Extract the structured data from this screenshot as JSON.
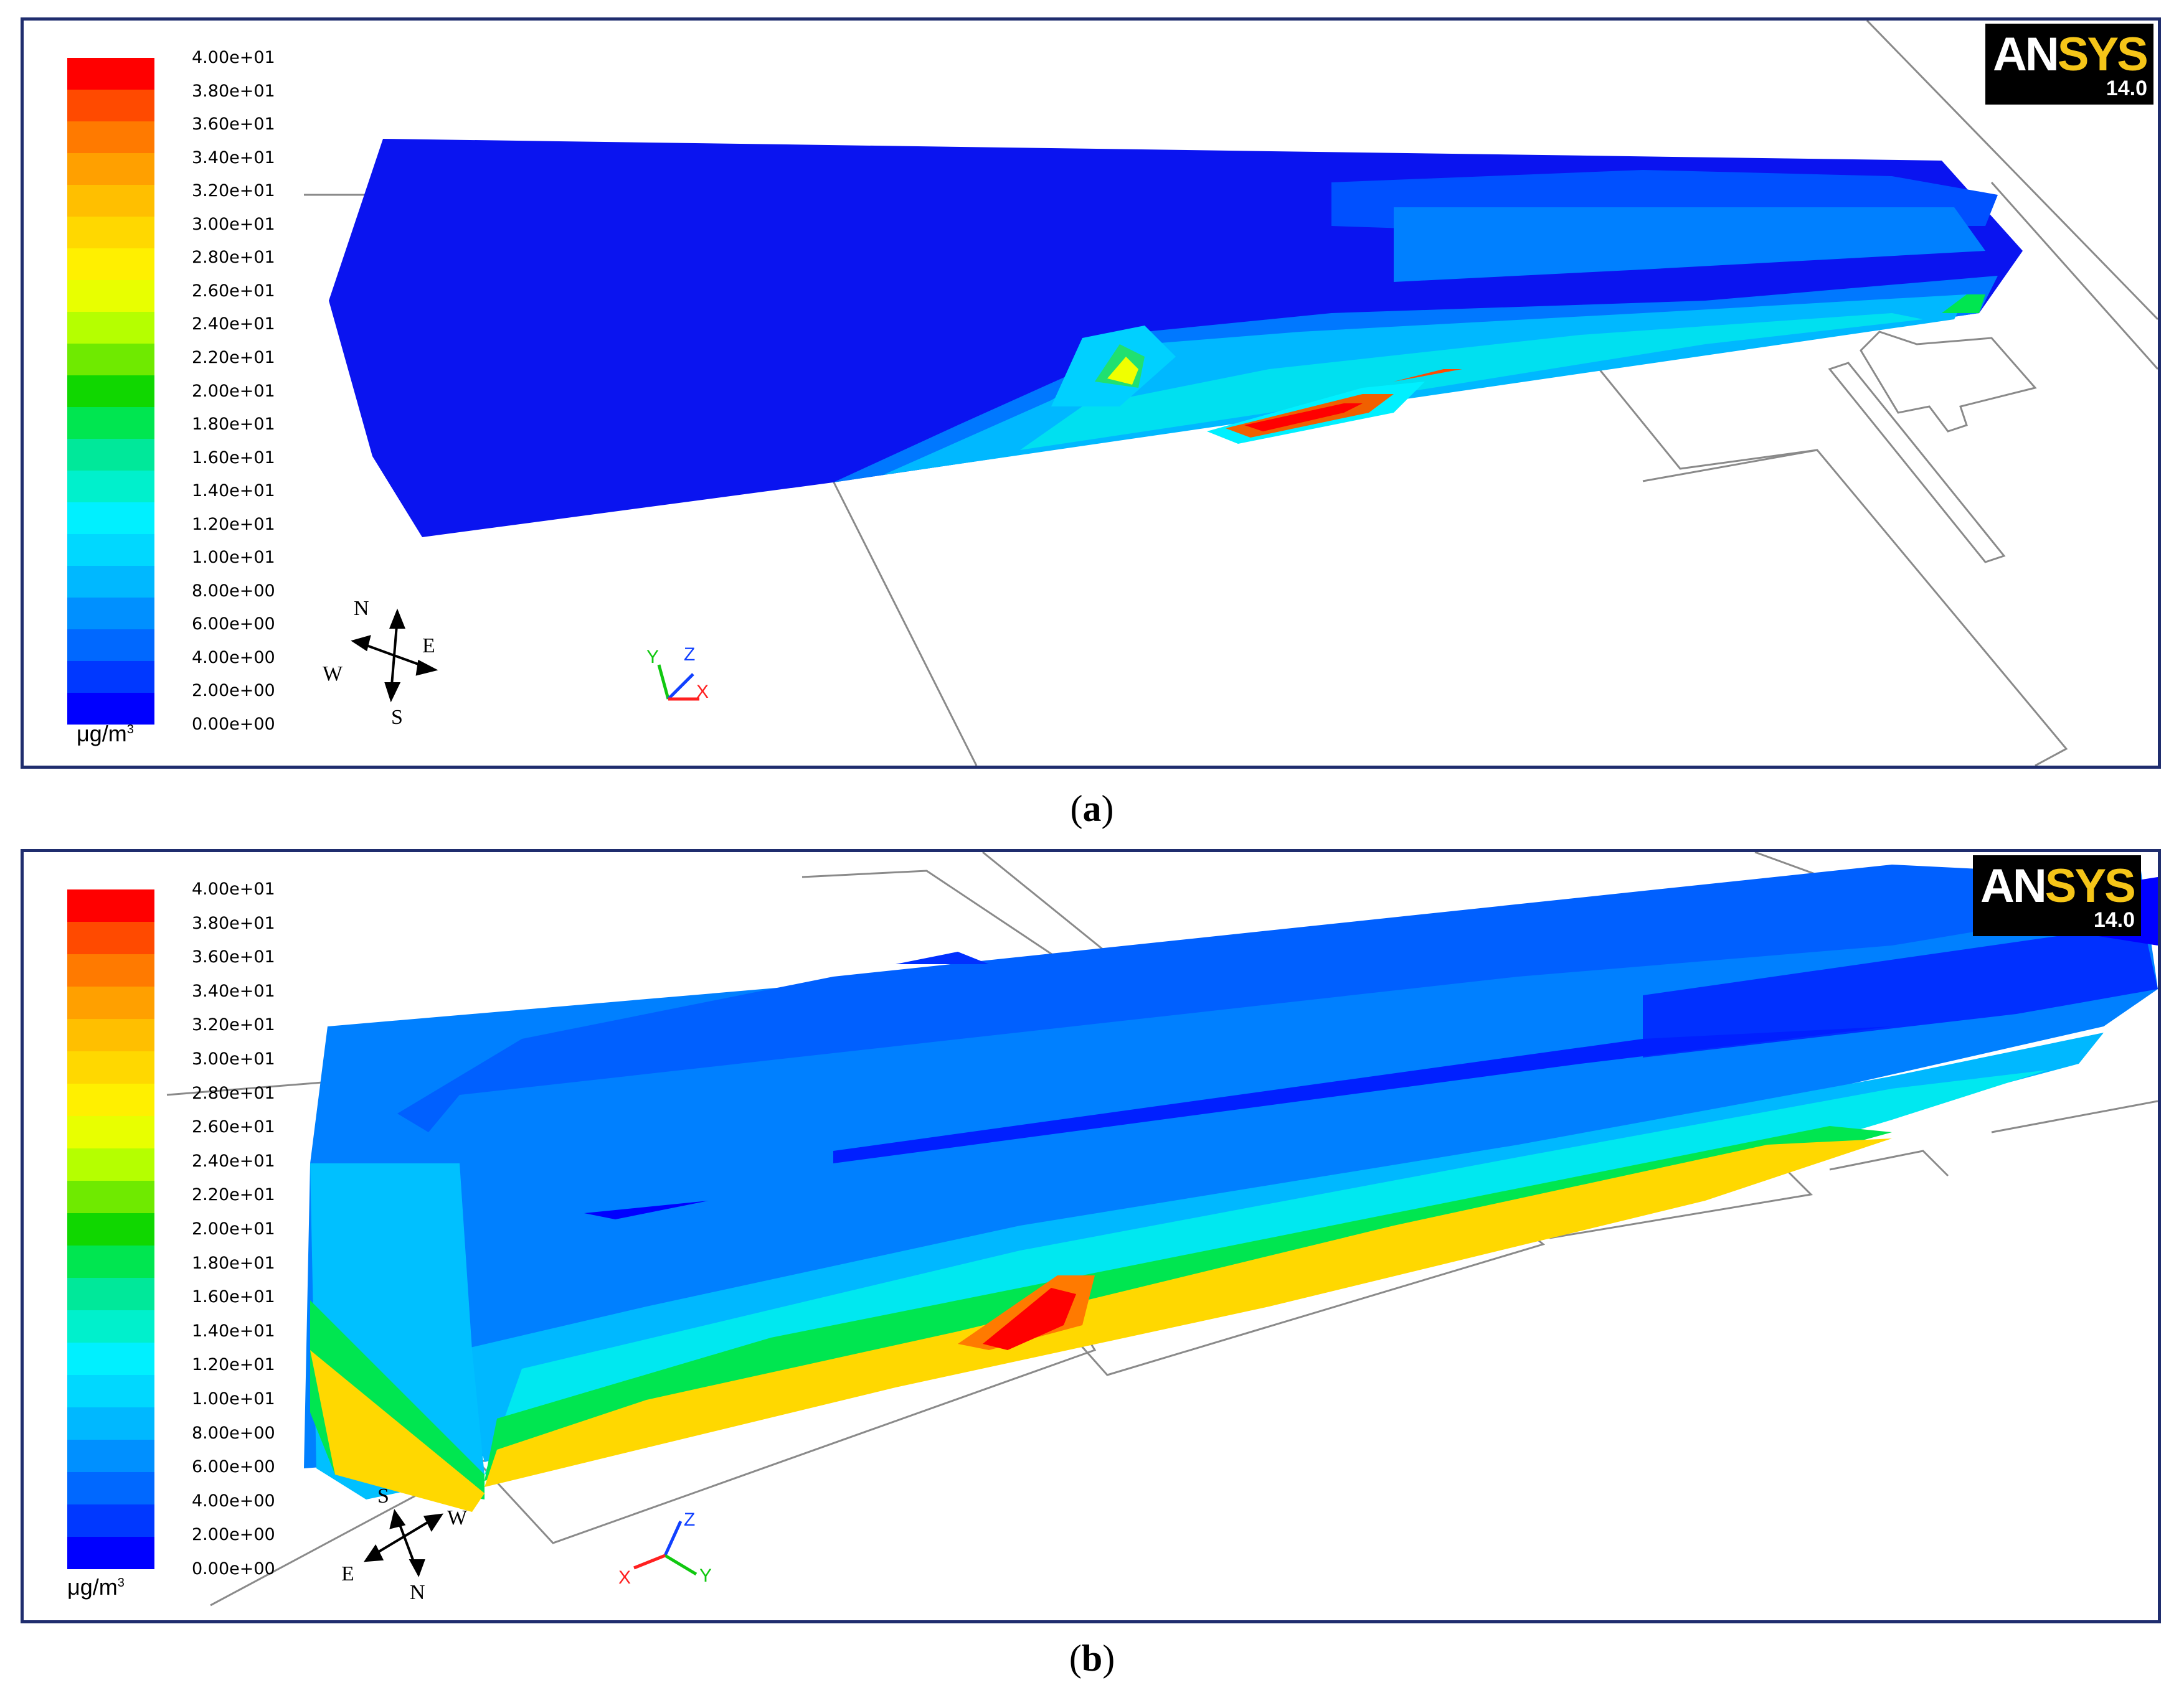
{
  "figure": {
    "software_logo": {
      "name_part1": "AN",
      "name_part2": "SYS",
      "version": "14.0"
    },
    "unit_label": "μg/m",
    "unit_superscript": "3",
    "colorbar_ticks": [
      "4.00e+01",
      "3.80e+01",
      "3.60e+01",
      "3.40e+01",
      "3.20e+01",
      "3.00e+01",
      "2.80e+01",
      "2.60e+01",
      "2.40e+01",
      "2.20e+01",
      "2.00e+01",
      "1.80e+01",
      "1.60e+01",
      "1.40e+01",
      "1.20e+01",
      "1.00e+01",
      "8.00e+00",
      "6.00e+00",
      "4.00e+00",
      "2.00e+00",
      "0.00e+00"
    ],
    "colorbar_colors": [
      "#ff0000",
      "#ff4a00",
      "#ff7a00",
      "#ffa000",
      "#ffbf00",
      "#ffd800",
      "#fff000",
      "#e8ff00",
      "#b5ff00",
      "#6fea00",
      "#10d700",
      "#00e650",
      "#00e89a",
      "#00f0cc",
      "#00f0ff",
      "#00d8ff",
      "#00b8ff",
      "#0090ff",
      "#0068ff",
      "#0038ff",
      "#0000ff"
    ]
  },
  "panel_a": {
    "caption_letter": "a",
    "compass": {
      "n": "N",
      "s": "S",
      "e": "E",
      "w": "W"
    },
    "triad": {
      "x": "X",
      "y": "Y",
      "z": "Z"
    }
  },
  "panel_b": {
    "caption_letter": "b",
    "compass": {
      "n": "N",
      "s": "S",
      "e": "E",
      "w": "W"
    },
    "triad": {
      "x": "X",
      "y": "Y",
      "z": "Z"
    }
  }
}
